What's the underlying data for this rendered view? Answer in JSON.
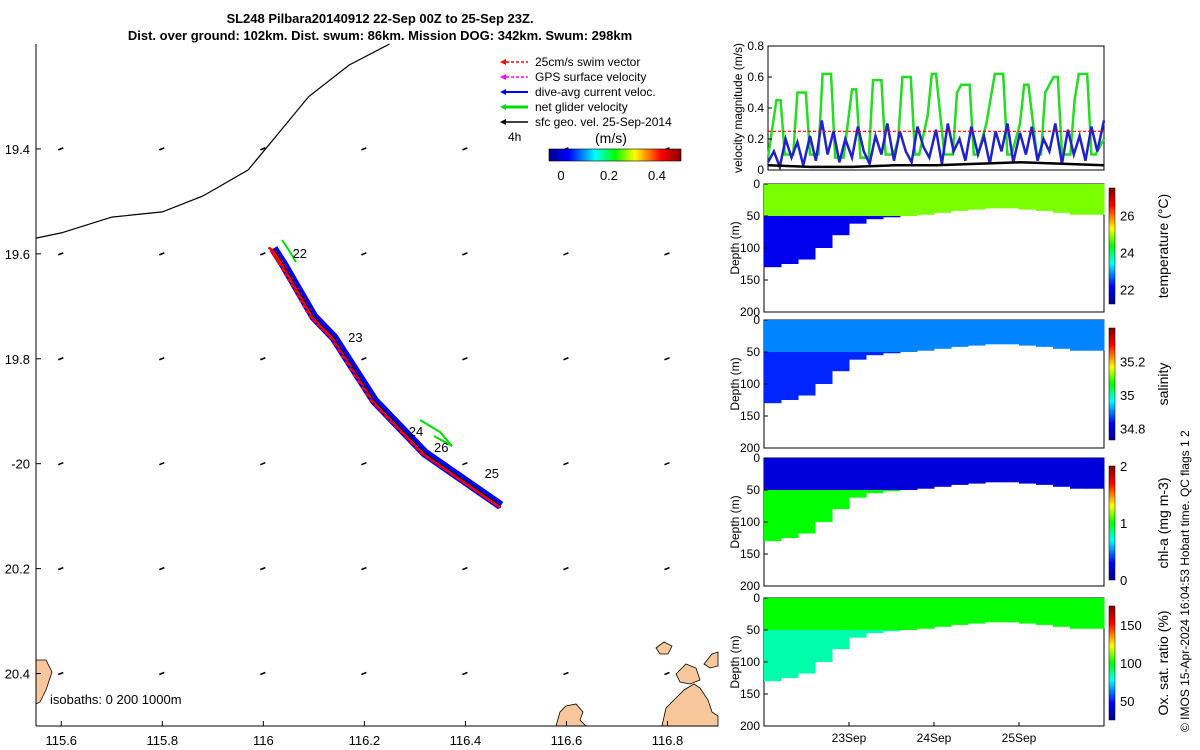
{
  "header": {
    "line1": "SL248 Pilbara20140912 22-Sep 00Z to 25-Sep 23Z.",
    "line2": "Dist. over ground: 102km. Dist. swum: 86km. Mission DOG: 342km. Swum: 298km"
  },
  "footer_stamp": "© IMOS 15-Apr-2024 16:04:53 Hobart time. QC flags 1  2",
  "colors": {
    "swim": "#ff0000",
    "gps": "#ff00ff",
    "current": "#0000ff",
    "net": "#00dd00",
    "sfc": "#000000",
    "land": "#f8c89c"
  },
  "chart_data": [
    {
      "type": "scatter",
      "name": "glider-track-map",
      "xlim": [
        115.55,
        116.9
      ],
      "ylim": [
        -20.5,
        -19.2
      ],
      "xticks": [
        115.6,
        115.8,
        116,
        116.2,
        116.4,
        116.6,
        116.8
      ],
      "xtick_labels": [
        "115.6",
        "115.8",
        "116",
        "116.2",
        "116.4",
        "116.6",
        "116.8"
      ],
      "yticks": [
        -19.4,
        -19.6,
        -19.8,
        -20,
        -20.2,
        -20.4
      ],
      "ytick_labels": [
        "19.4",
        "19.6",
        "19.8",
        "-20",
        "20.2",
        "20.4"
      ],
      "legend": {
        "placement": "top-right",
        "entries": [
          "25cm/s swim vector",
          "GPS surface velocity",
          "dive-avg current veloc.",
          "net glider velocity",
          "sfc geo. vel. 25-Sep-2014"
        ]
      },
      "colorbar": {
        "label": "(m/s)",
        "ticks": [
          "0",
          "0.2",
          "0.4"
        ],
        "range": [
          -0.05,
          0.5
        ],
        "side_label": "4h"
      },
      "isobaths_label": "isobaths: 0   200  1000m",
      "day_labels": [
        {
          "text": "22",
          "lon": 116.05,
          "lat": -19.6
        },
        {
          "text": "23",
          "lon": 116.16,
          "lat": -19.76
        },
        {
          "text": "24",
          "lon": 116.28,
          "lat": -19.94
        },
        {
          "text": "26",
          "lon": 116.33,
          "lat": -19.97
        },
        {
          "text": "25",
          "lon": 116.43,
          "lat": -20.02
        }
      ],
      "track": [
        [
          116.02,
          -19.59
        ],
        [
          116.04,
          -19.62
        ],
        [
          116.07,
          -19.67
        ],
        [
          116.1,
          -19.72
        ],
        [
          116.14,
          -19.76
        ],
        [
          116.18,
          -19.82
        ],
        [
          116.22,
          -19.88
        ],
        [
          116.27,
          -19.93
        ],
        [
          116.32,
          -19.98
        ],
        [
          116.38,
          -20.02
        ],
        [
          116.44,
          -20.06
        ],
        [
          116.47,
          -20.08
        ]
      ],
      "isobath_line": [
        [
          115.55,
          -19.57
        ],
        [
          115.6,
          -19.56
        ],
        [
          115.7,
          -19.53
        ],
        [
          115.8,
          -19.52
        ],
        [
          115.88,
          -19.49
        ],
        [
          115.97,
          -19.44
        ],
        [
          116.03,
          -19.37
        ],
        [
          116.09,
          -19.3
        ],
        [
          116.17,
          -19.24
        ],
        [
          116.25,
          -19.2
        ]
      ],
      "vector_grid": {
        "lons": [
          115.6,
          115.8,
          116.0,
          116.2,
          116.4,
          116.6,
          116.8
        ],
        "lats": [
          -19.4,
          -19.6,
          -19.8,
          -20.0,
          -20.2,
          -20.4
        ]
      }
    },
    {
      "type": "line",
      "name": "velocity-magnitude",
      "ylabel": "velocity magnitude (m/s)",
      "ylim": [
        0,
        0.8
      ],
      "yticks": [
        "0",
        "0.2",
        "0.4",
        "0.6",
        "0.8"
      ],
      "xlim_days": [
        0,
        4
      ],
      "series": [
        {
          "name": "net glider velocity",
          "color": "#22dd22",
          "x": [
            0,
            0.1,
            0.15,
            0.2,
            0.3,
            0.35,
            0.45,
            0.5,
            0.6,
            0.65,
            0.75,
            0.8,
            0.9,
            0.95,
            1.0,
            1.05,
            1.1,
            1.2,
            1.25,
            1.35,
            1.4,
            1.5,
            1.55,
            1.6,
            1.7,
            1.75,
            1.8,
            1.9,
            1.95,
            2.0,
            2.1,
            2.2,
            2.25,
            2.3,
            2.4,
            2.45,
            2.5,
            2.6,
            2.7,
            2.8,
            2.85,
            2.9,
            3.0,
            3.05,
            3.1,
            3.2,
            3.25,
            3.3,
            3.4,
            3.45,
            3.5,
            3.6,
            3.65,
            3.7,
            3.8,
            3.85,
            3.9,
            4.0
          ],
          "y": [
            0.08,
            0.45,
            0.45,
            0.1,
            0.1,
            0.5,
            0.5,
            0.1,
            0.1,
            0.62,
            0.62,
            0.08,
            0.08,
            0.3,
            0.52,
            0.52,
            0.08,
            0.08,
            0.58,
            0.58,
            0.1,
            0.1,
            0.2,
            0.6,
            0.6,
            0.1,
            0.1,
            0.35,
            0.62,
            0.62,
            0.1,
            0.1,
            0.5,
            0.55,
            0.55,
            0.1,
            0.1,
            0.3,
            0.62,
            0.62,
            0.1,
            0.1,
            0.3,
            0.55,
            0.55,
            0.1,
            0.1,
            0.5,
            0.6,
            0.6,
            0.1,
            0.1,
            0.45,
            0.62,
            0.62,
            0.1,
            0.1,
            0.2
          ]
        },
        {
          "name": "dive-avg current veloc.",
          "color": "#2020cc",
          "x": [
            0,
            0.07,
            0.14,
            0.21,
            0.28,
            0.35,
            0.42,
            0.5,
            0.57,
            0.64,
            0.71,
            0.78,
            0.85,
            0.92,
            1.0,
            1.07,
            1.14,
            1.21,
            1.28,
            1.35,
            1.42,
            1.5,
            1.57,
            1.64,
            1.71,
            1.78,
            1.85,
            1.92,
            2.0,
            2.07,
            2.14,
            2.21,
            2.28,
            2.35,
            2.42,
            2.5,
            2.57,
            2.64,
            2.71,
            2.78,
            2.85,
            2.92,
            3.0,
            3.07,
            3.14,
            3.21,
            3.28,
            3.35,
            3.42,
            3.5,
            3.57,
            3.64,
            3.71,
            3.78,
            3.85,
            3.92,
            4.0
          ],
          "y": [
            0.05,
            0.12,
            0.02,
            0.2,
            0.08,
            0.18,
            0.03,
            0.22,
            0.06,
            0.32,
            0.1,
            0.25,
            0.05,
            0.2,
            0.08,
            0.28,
            0.12,
            0.04,
            0.22,
            0.1,
            0.3,
            0.06,
            0.25,
            0.12,
            0.05,
            0.28,
            0.15,
            0.08,
            0.26,
            0.04,
            0.3,
            0.12,
            0.2,
            0.06,
            0.28,
            0.1,
            0.22,
            0.04,
            0.25,
            0.12,
            0.3,
            0.05,
            0.24,
            0.1,
            0.28,
            0.06,
            0.2,
            0.12,
            0.3,
            0.04,
            0.26,
            0.1,
            0.22,
            0.06,
            0.28,
            0.12,
            0.32
          ]
        },
        {
          "name": "swim",
          "color": "#ff0000",
          "style": "dashed",
          "x": [
            0,
            4
          ],
          "y": [
            0.25,
            0.25
          ]
        },
        {
          "name": "sfc geo. vel.",
          "color": "#000000",
          "x": [
            0,
            0.5,
            1,
            1.5,
            2,
            2.5,
            3,
            3.5,
            4
          ],
          "y": [
            0.03,
            0.02,
            0.02,
            0.03,
            0.03,
            0.04,
            0.05,
            0.04,
            0.03
          ]
        }
      ]
    },
    {
      "type": "heatmap",
      "name": "temperature-section",
      "ylabel": "Depth (m)",
      "yticks": [
        "0",
        "50",
        "100",
        "150",
        "200"
      ],
      "colorbar": {
        "label": "temperature (°C)",
        "ticks": [
          "22",
          "24",
          "26"
        ],
        "range": [
          21.2,
          27.5
        ]
      },
      "bottom_depth_m": [
        130,
        125,
        118,
        100,
        80,
        62,
        55,
        52,
        50,
        48,
        45,
        42,
        40,
        38,
        38,
        40,
        42,
        45,
        48,
        48
      ],
      "upper_value": 24.8,
      "lower_value": 22.0
    },
    {
      "type": "heatmap",
      "name": "salinity-section",
      "ylabel": "Depth (m)",
      "yticks": [
        "0",
        "50",
        "100",
        "150",
        "200"
      ],
      "colorbar": {
        "label": "salinity",
        "ticks": [
          "34.8",
          "35",
          "35.2"
        ],
        "range": [
          34.73,
          35.4
        ]
      },
      "bottom_depth_m": [
        130,
        125,
        118,
        100,
        80,
        62,
        55,
        52,
        50,
        48,
        45,
        42,
        40,
        38,
        38,
        40,
        42,
        45,
        48,
        48
      ],
      "upper_value": 34.9,
      "lower_value": 34.85
    },
    {
      "type": "heatmap",
      "name": "chla-section",
      "ylabel": "Depth (m)",
      "yticks": [
        "0",
        "50",
        "100",
        "150",
        "200"
      ],
      "colorbar": {
        "label": "chl-a (mg m-3)",
        "ticks": [
          "0",
          "1",
          "2"
        ],
        "range": [
          0,
          2
        ]
      },
      "bottom_depth_m": [
        130,
        125,
        118,
        100,
        80,
        62,
        55,
        52,
        50,
        48,
        45,
        42,
        40,
        38,
        38,
        40,
        42,
        45,
        48,
        48
      ],
      "upper_value": 0.2,
      "lower_value": 1.0
    },
    {
      "type": "heatmap",
      "name": "oxygen-section",
      "ylabel": "Depth (m)",
      "yticks": [
        "0",
        "50",
        "100",
        "150",
        "200"
      ],
      "colorbar": {
        "label": "Ox. sat. ratio (%)",
        "ticks": [
          "50",
          "100",
          "150"
        ],
        "range": [
          25,
          175
        ]
      },
      "bottom_depth_m": [
        130,
        125,
        118,
        100,
        80,
        62,
        55,
        52,
        50,
        48,
        45,
        42,
        40,
        38,
        38,
        40,
        42,
        45,
        48,
        48
      ],
      "upper_value": 100,
      "lower_value": 85
    }
  ],
  "time_axis": {
    "labels": [
      "23Sep",
      "24Sep",
      "25Sep"
    ],
    "days": [
      1,
      2,
      3
    ],
    "range_days": [
      0,
      4
    ]
  }
}
